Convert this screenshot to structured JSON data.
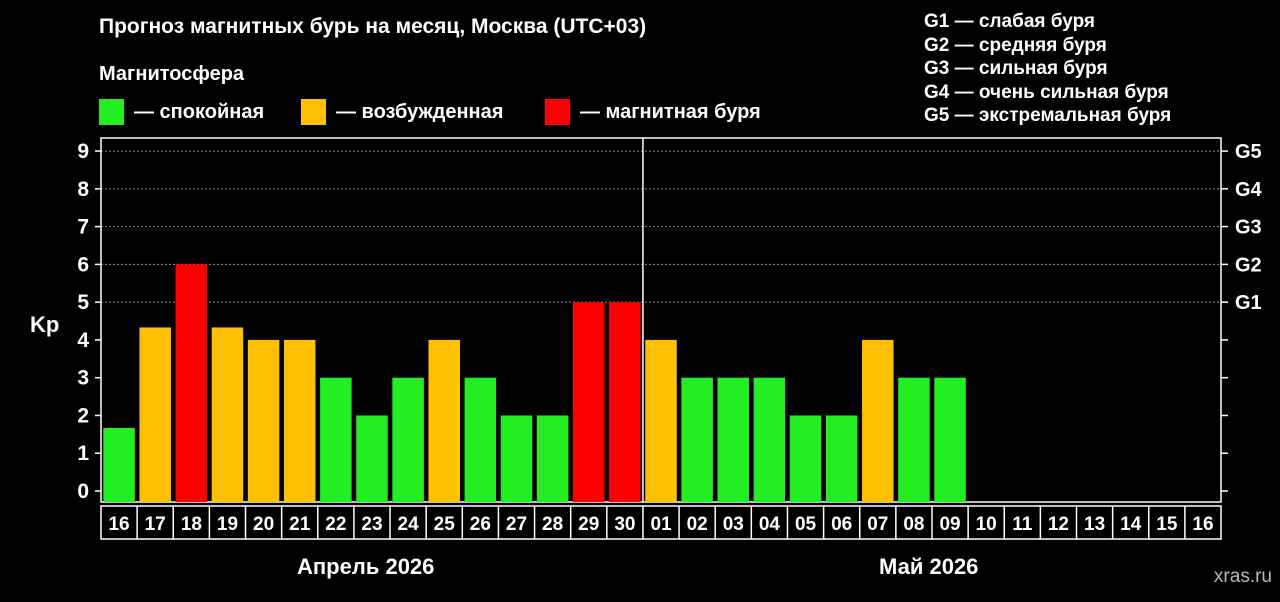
{
  "header": {
    "title": "Прогноз магнитных бурь на месяц, Москва (UTC+03)",
    "subtitle": "Магнитосфера"
  },
  "legend": [
    {
      "label": "— спокойная",
      "color": "#22ee22"
    },
    {
      "label": "— возбужденная",
      "color": "#ffc000"
    },
    {
      "label": "— магнитная буря",
      "color": "#ff0000"
    }
  ],
  "g_legend": [
    "G1 — слабая буря",
    "G2 — средняя буря",
    "G3 — сильная буря",
    "G4 — очень сильная буря",
    "G5 — экстремальная буря"
  ],
  "months": {
    "april": "Апрель 2026",
    "may": "Май 2026"
  },
  "watermark": "xras.ru",
  "chart_data": {
    "type": "bar",
    "ylabel": "Kp",
    "ylim": [
      0,
      9
    ],
    "y_ticks": [
      "0",
      "1",
      "2",
      "3",
      "4",
      "5",
      "6",
      "7",
      "8",
      "9"
    ],
    "right_axis_labels": [
      {
        "kp": 5,
        "label": "G1"
      },
      {
        "kp": 6,
        "label": "G2"
      },
      {
        "kp": 7,
        "label": "G3"
      },
      {
        "kp": 8,
        "label": "G4"
      },
      {
        "kp": 9,
        "label": "G5"
      }
    ],
    "grid": true,
    "categories": [
      "16",
      "17",
      "18",
      "19",
      "20",
      "21",
      "22",
      "23",
      "24",
      "25",
      "26",
      "27",
      "28",
      "29",
      "30",
      "01",
      "02",
      "03",
      "04",
      "05",
      "06",
      "07",
      "08",
      "09",
      "10",
      "11",
      "12",
      "13",
      "14",
      "15",
      "16"
    ],
    "values": [
      1.67,
      4.33,
      6,
      4.33,
      4,
      4,
      3,
      2,
      3,
      4,
      3,
      2,
      2,
      5,
      5,
      4,
      3,
      3,
      3,
      2,
      2,
      4,
      3,
      3,
      null,
      null,
      null,
      null,
      null,
      null,
      null
    ],
    "levels": [
      "calm",
      "active",
      "storm",
      "active",
      "active",
      "active",
      "calm",
      "calm",
      "calm",
      "active",
      "calm",
      "calm",
      "calm",
      "storm",
      "storm",
      "active",
      "calm",
      "calm",
      "calm",
      "calm",
      "calm",
      "active",
      "calm",
      "calm",
      null,
      null,
      null,
      null,
      null,
      null,
      null
    ],
    "colors": {
      "calm": "#22ee22",
      "active": "#ffc000",
      "storm": "#ff0000"
    }
  }
}
